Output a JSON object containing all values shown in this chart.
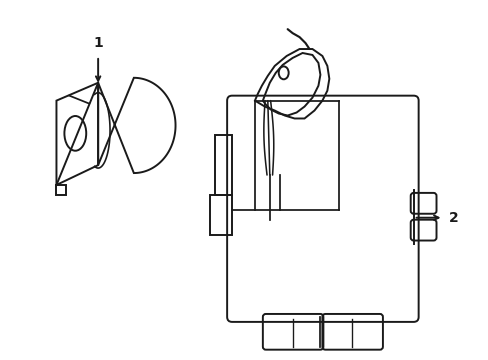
{
  "bg_color": "#ffffff",
  "line_color": "#1a1a1a",
  "line_width": 1.4,
  "label1": "1",
  "label2": "2"
}
